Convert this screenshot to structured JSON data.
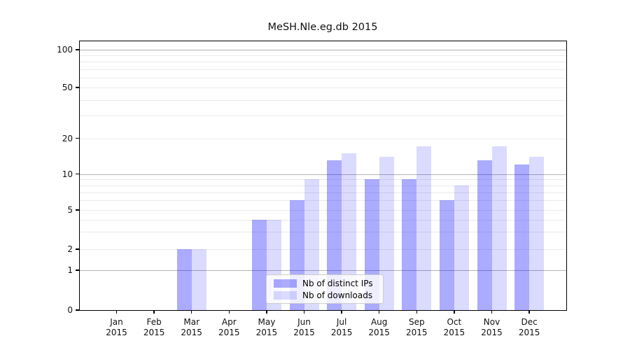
{
  "figure": {
    "background": "#ffffff"
  },
  "chart_data": {
    "type": "bar",
    "title": "MeSH.Nle.eg.db 2015",
    "x_labels": [
      {
        "month": "Jan",
        "year": "2015"
      },
      {
        "month": "Feb",
        "year": "2015"
      },
      {
        "month": "Mar",
        "year": "2015"
      },
      {
        "month": "Apr",
        "year": "2015"
      },
      {
        "month": "May",
        "year": "2015"
      },
      {
        "month": "Jun",
        "year": "2015"
      },
      {
        "month": "Jul",
        "year": "2015"
      },
      {
        "month": "Aug",
        "year": "2015"
      },
      {
        "month": "Sep",
        "year": "2015"
      },
      {
        "month": "Oct",
        "year": "2015"
      },
      {
        "month": "Nov",
        "year": "2015"
      },
      {
        "month": "Dec",
        "year": "2015"
      }
    ],
    "series": [
      {
        "key": "distinct-ips",
        "name": "Nb of distinct IPs",
        "color": "rgba(0,0,255,0.33)",
        "values": [
          0,
          0,
          2,
          0,
          4,
          6,
          13,
          9,
          9,
          6,
          13,
          12
        ]
      },
      {
        "key": "downloads",
        "name": "Nb of downloads",
        "color": "rgba(0,0,255,0.14)",
        "values": [
          0,
          0,
          2,
          0,
          4,
          9,
          15,
          14,
          17,
          8,
          17,
          14
        ]
      }
    ],
    "y_axis": {
      "scale": "symlog",
      "tick_values": [
        0,
        1,
        2,
        5,
        10,
        20,
        50,
        100
      ],
      "tick_labels": [
        "0",
        "1",
        "2",
        "5",
        "10",
        "20",
        "50",
        "100"
      ],
      "major_gridlines": [
        1,
        10,
        100
      ],
      "minor_gridlines": [
        2,
        3,
        4,
        5,
        6,
        7,
        8,
        9,
        20,
        30,
        40,
        50,
        60,
        70,
        80,
        90
      ],
      "range": [
        0,
        117
      ]
    },
    "legend": {
      "position": "lower-center-inside"
    },
    "grid": true,
    "colors": {
      "major_grid": "#b3b3b3",
      "minor_grid": "#ebebeb",
      "spine": "#000000",
      "text": "#111111"
    }
  }
}
